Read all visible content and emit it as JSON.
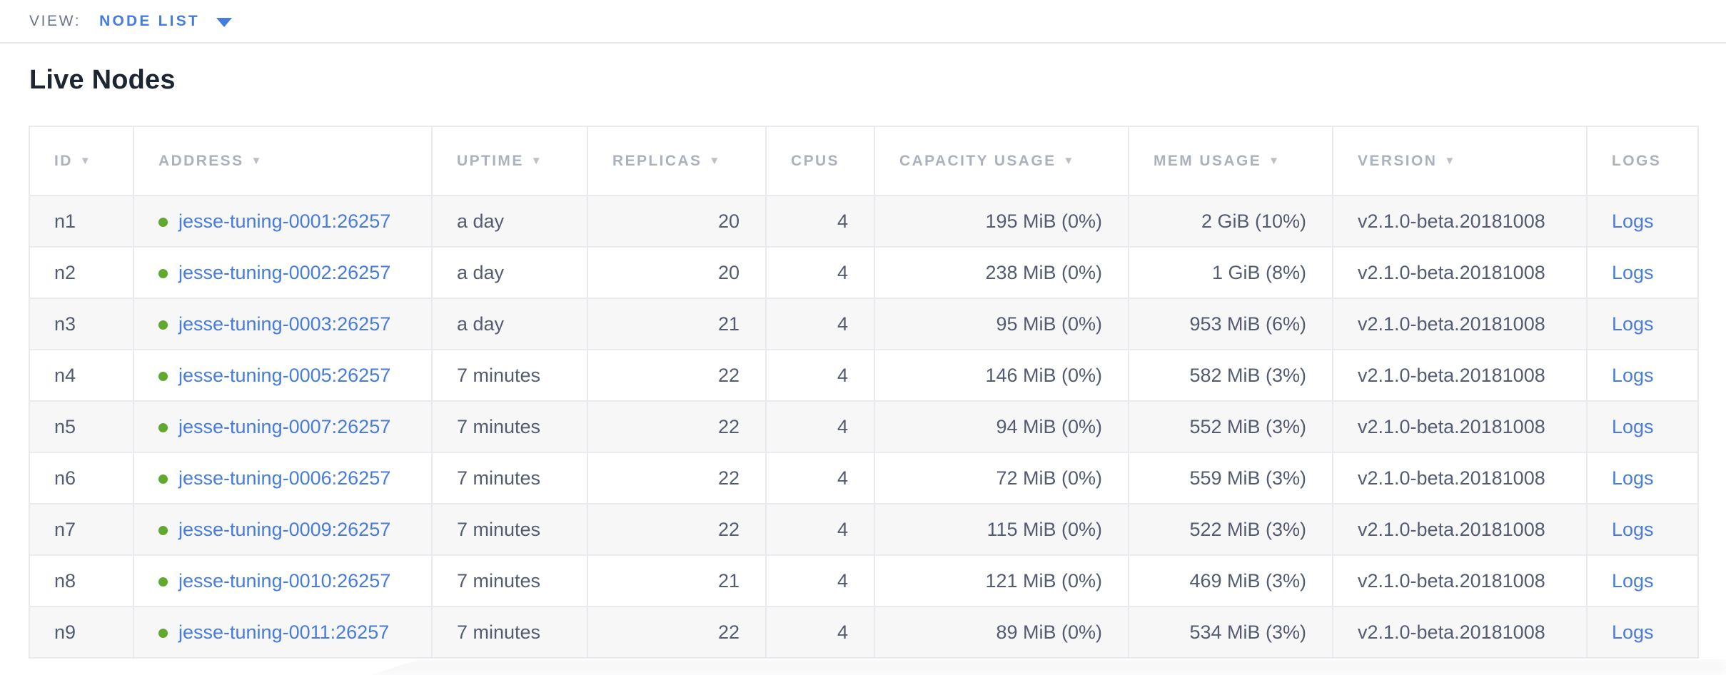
{
  "view_bar": {
    "label": "VIEW:",
    "selected_view": "NODE LIST",
    "caret_icon": "caret-down"
  },
  "page": {
    "title": "Live Nodes"
  },
  "colors": {
    "link": "#467be0",
    "healthy_dot": "#61a82f",
    "cell_text": "#535c70",
    "header_text": "#abb2bc"
  },
  "table": {
    "columns": [
      {
        "key": "id",
        "label": "ID",
        "sortable": true,
        "align": "left",
        "sort_icon": "triangle-down"
      },
      {
        "key": "address",
        "label": "ADDRESS",
        "sortable": true,
        "align": "left",
        "sort_icon": "triangle-down"
      },
      {
        "key": "uptime",
        "label": "UPTIME",
        "sortable": true,
        "align": "left",
        "sort_icon": "triangle-down"
      },
      {
        "key": "replicas",
        "label": "REPLICAS",
        "sortable": true,
        "align": "right",
        "sort_icon": "triangle-down"
      },
      {
        "key": "cpus",
        "label": "CPUS",
        "sortable": false,
        "align": "right"
      },
      {
        "key": "capacity",
        "label": "CAPACITY USAGE",
        "sortable": true,
        "align": "right",
        "sort_icon": "triangle-down"
      },
      {
        "key": "mem",
        "label": "MEM USAGE",
        "sortable": true,
        "align": "right",
        "sort_icon": "triangle-down"
      },
      {
        "key": "version",
        "label": "VERSION",
        "sortable": true,
        "align": "left",
        "sort_icon": "triangle-down"
      },
      {
        "key": "logs",
        "label": "LOGS",
        "sortable": false,
        "align": "left"
      }
    ],
    "rows": [
      {
        "id": "n1",
        "status_icon": "healthy-green-dot",
        "address": "jesse-tuning-0001:26257",
        "uptime": "a day",
        "replicas": "20",
        "cpus": "4",
        "capacity": "195 MiB (0%)",
        "mem": "2 GiB (10%)",
        "version": "v2.1.0-beta.20181008",
        "logs": "Logs"
      },
      {
        "id": "n2",
        "status_icon": "healthy-green-dot",
        "address": "jesse-tuning-0002:26257",
        "uptime": "a day",
        "replicas": "20",
        "cpus": "4",
        "capacity": "238 MiB (0%)",
        "mem": "1 GiB (8%)",
        "version": "v2.1.0-beta.20181008",
        "logs": "Logs"
      },
      {
        "id": "n3",
        "status_icon": "healthy-green-dot",
        "address": "jesse-tuning-0003:26257",
        "uptime": "a day",
        "replicas": "21",
        "cpus": "4",
        "capacity": "95 MiB (0%)",
        "mem": "953 MiB (6%)",
        "version": "v2.1.0-beta.20181008",
        "logs": "Logs"
      },
      {
        "id": "n4",
        "status_icon": "healthy-green-dot",
        "address": "jesse-tuning-0005:26257",
        "uptime": "7 minutes",
        "replicas": "22",
        "cpus": "4",
        "capacity": "146 MiB (0%)",
        "mem": "582 MiB (3%)",
        "version": "v2.1.0-beta.20181008",
        "logs": "Logs"
      },
      {
        "id": "n5",
        "status_icon": "healthy-green-dot",
        "address": "jesse-tuning-0007:26257",
        "uptime": "7 minutes",
        "replicas": "22",
        "cpus": "4",
        "capacity": "94 MiB (0%)",
        "mem": "552 MiB (3%)",
        "version": "v2.1.0-beta.20181008",
        "logs": "Logs"
      },
      {
        "id": "n6",
        "status_icon": "healthy-green-dot",
        "address": "jesse-tuning-0006:26257",
        "uptime": "7 minutes",
        "replicas": "22",
        "cpus": "4",
        "capacity": "72 MiB (0%)",
        "mem": "559 MiB (3%)",
        "version": "v2.1.0-beta.20181008",
        "logs": "Logs"
      },
      {
        "id": "n7",
        "status_icon": "healthy-green-dot",
        "address": "jesse-tuning-0009:26257",
        "uptime": "7 minutes",
        "replicas": "22",
        "cpus": "4",
        "capacity": "115 MiB (0%)",
        "mem": "522 MiB (3%)",
        "version": "v2.1.0-beta.20181008",
        "logs": "Logs"
      },
      {
        "id": "n8",
        "status_icon": "healthy-green-dot",
        "address": "jesse-tuning-0010:26257",
        "uptime": "7 minutes",
        "replicas": "21",
        "cpus": "4",
        "capacity": "121 MiB (0%)",
        "mem": "469 MiB (3%)",
        "version": "v2.1.0-beta.20181008",
        "logs": "Logs"
      },
      {
        "id": "n9",
        "status_icon": "healthy-green-dot",
        "address": "jesse-tuning-0011:26257",
        "uptime": "7 minutes",
        "replicas": "22",
        "cpus": "4",
        "capacity": "89 MiB (0%)",
        "mem": "534 MiB (3%)",
        "version": "v2.1.0-beta.20181008",
        "logs": "Logs"
      }
    ]
  }
}
